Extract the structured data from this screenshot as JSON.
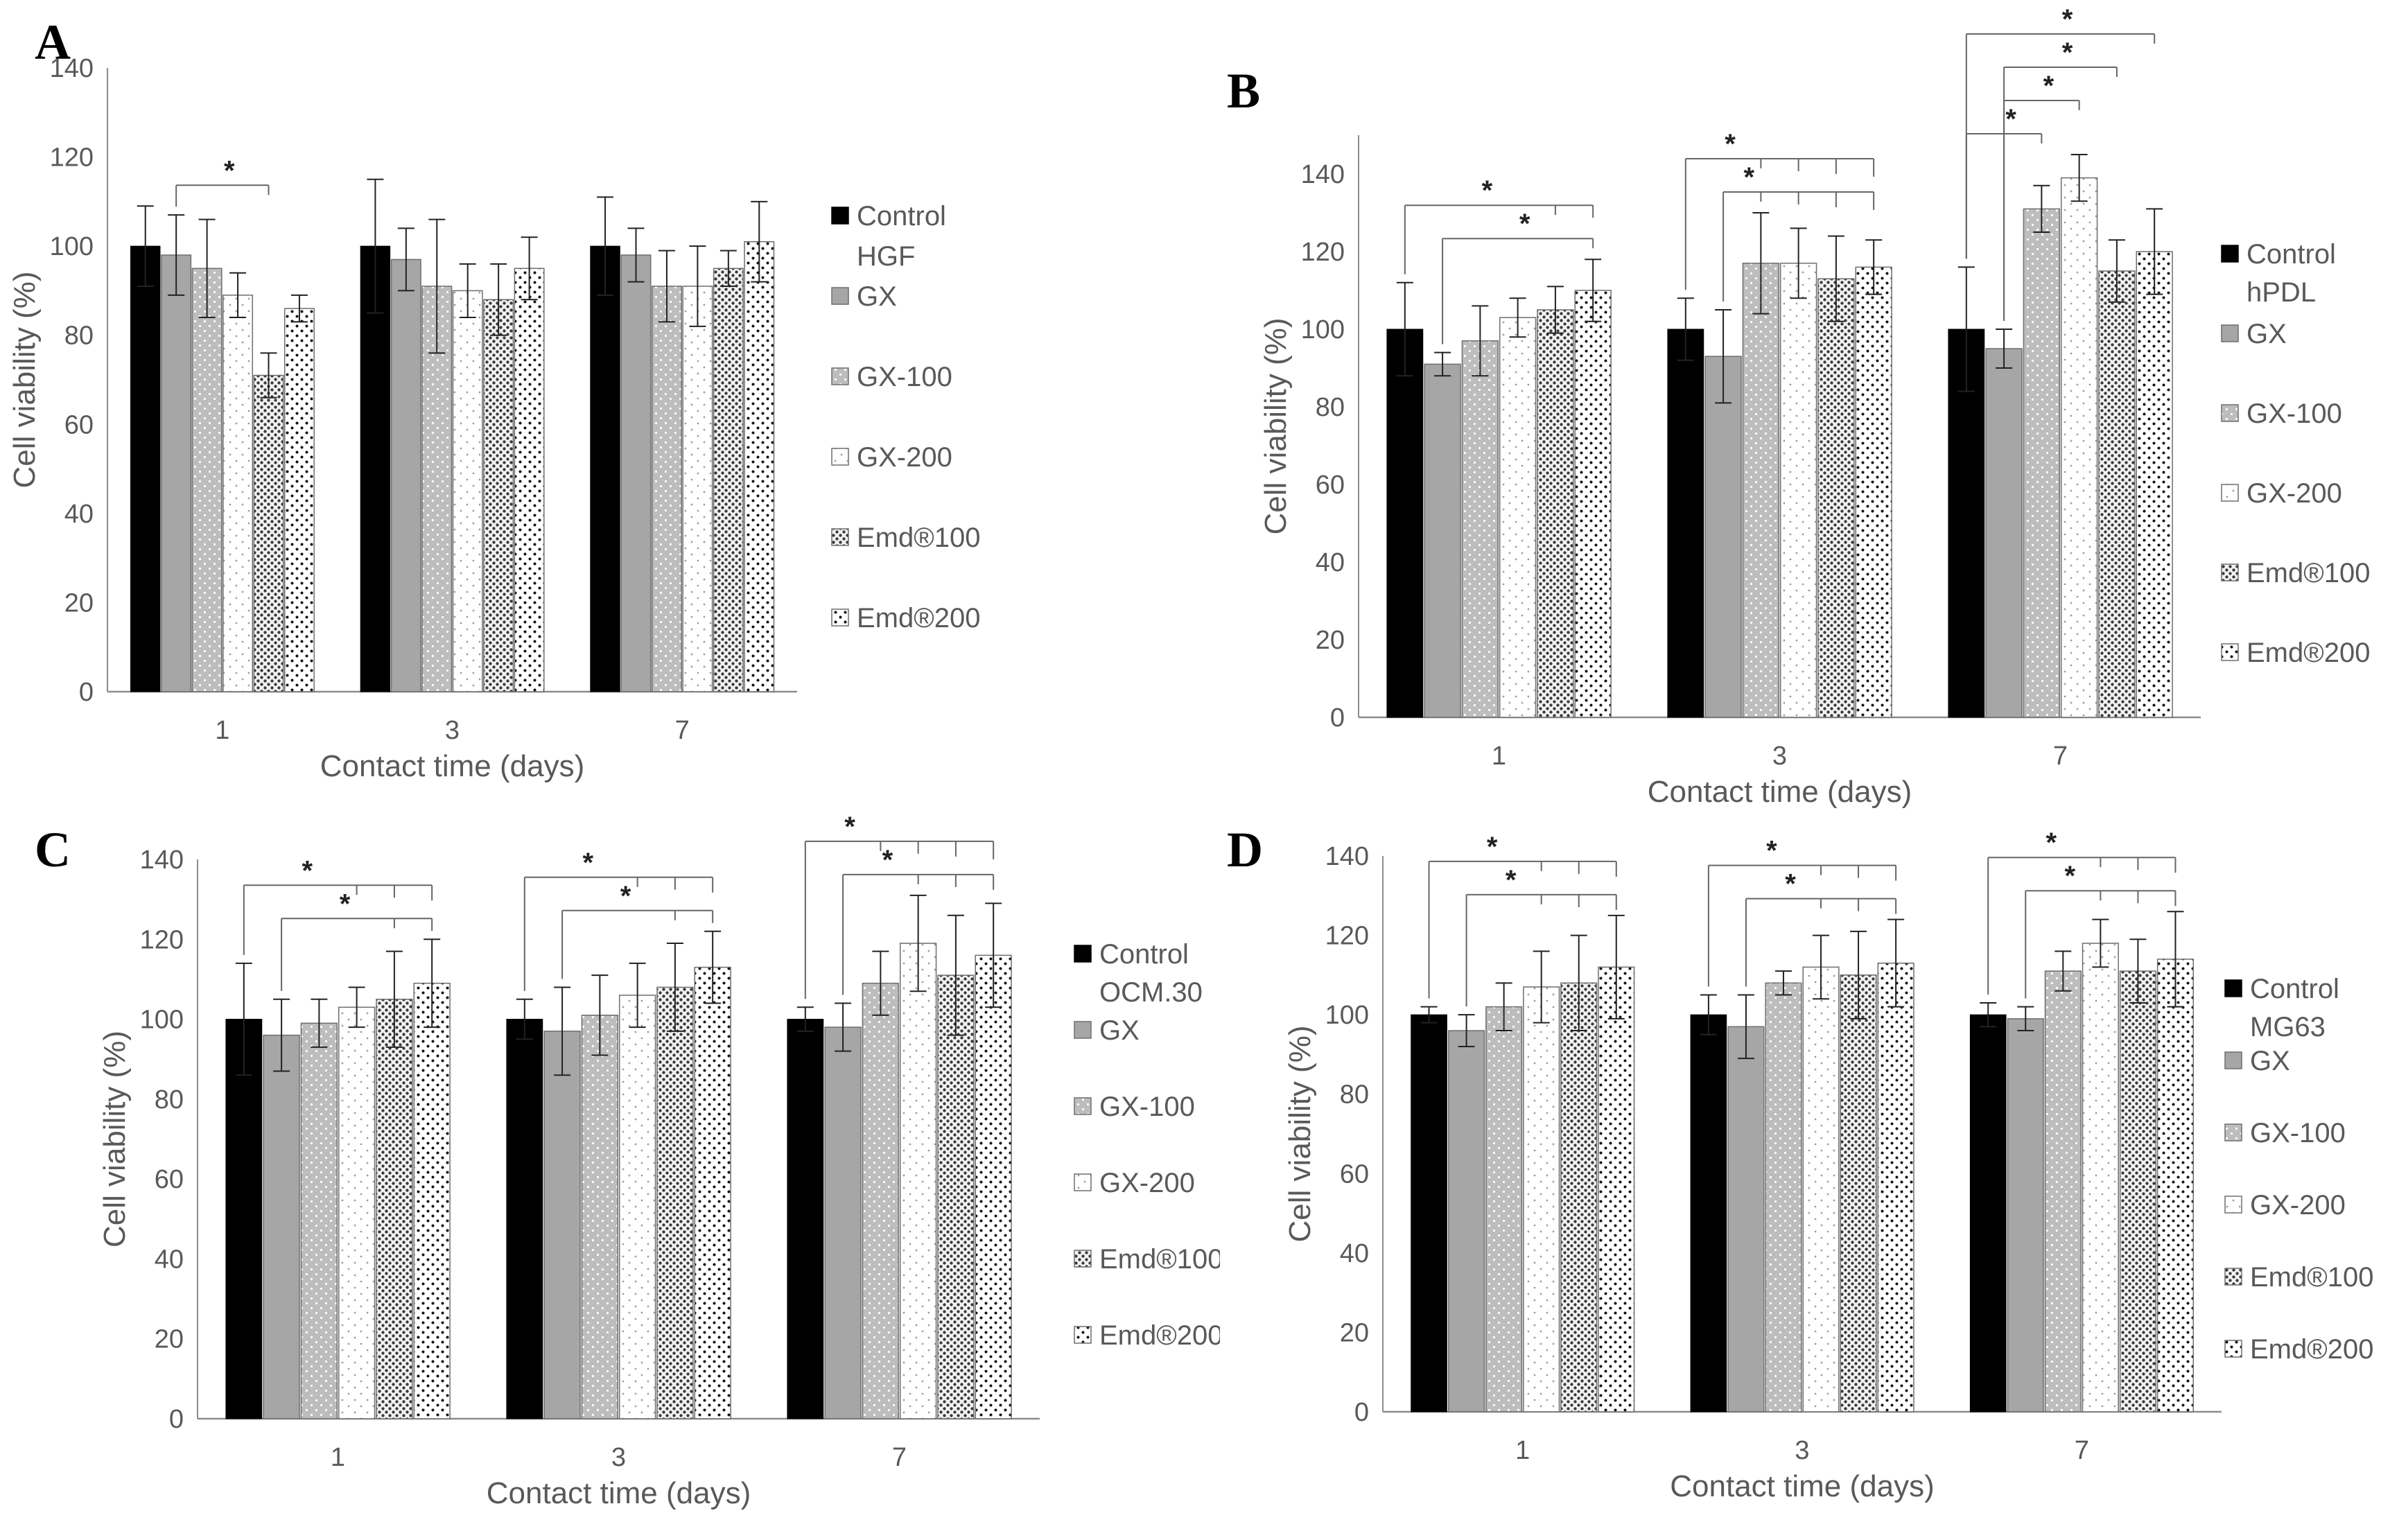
{
  "colors": {
    "control": "#000000",
    "gx": "#a6a6a6",
    "axis": "#8c8c8c",
    "text": "#595959"
  },
  "legend_labels": [
    "Control",
    "GX",
    "GX-100",
    "GX-200",
    "Emd®100",
    "Emd®200"
  ],
  "chart_data": [
    {
      "id": "A",
      "letter": "A",
      "type": "bar",
      "cell_line": "HGF",
      "title": "",
      "xlabel": "Contact time (days)",
      "ylabel": "Cell viability (%)",
      "ylim": [
        0,
        140
      ],
      "yticks": [
        "0",
        "20",
        "40",
        "60",
        "80",
        "100",
        "120",
        "140"
      ],
      "categories": [
        "1",
        "3",
        "7"
      ],
      "series": [
        {
          "name": "Control",
          "values": [
            100,
            100,
            100
          ],
          "errors": [
            9,
            15,
            11
          ]
        },
        {
          "name": "GX",
          "values": [
            98,
            97,
            98
          ],
          "errors": [
            9,
            7,
            6
          ]
        },
        {
          "name": "GX-100",
          "values": [
            95,
            91,
            91
          ],
          "errors": [
            11,
            15,
            8
          ]
        },
        {
          "name": "GX-200",
          "values": [
            89,
            90,
            91
          ],
          "errors": [
            5,
            6,
            9
          ]
        },
        {
          "name": "Emd®100",
          "values": [
            71,
            88,
            95
          ],
          "errors": [
            5,
            8,
            4
          ]
        },
        {
          "name": "Emd®200",
          "values": [
            86,
            95,
            101
          ],
          "errors": [
            3,
            7,
            9
          ]
        }
      ],
      "significance": [
        {
          "label": "*",
          "category": 0,
          "from_series": 1,
          "to_series": [
            4
          ],
          "level": 0
        }
      ]
    },
    {
      "id": "B",
      "letter": "B",
      "type": "bar",
      "cell_line": "hPDL",
      "title": "",
      "xlabel": "Contact time (days)",
      "ylabel": "Cell viability (%)",
      "ylim": [
        0,
        150
      ],
      "yticks": [
        "0",
        "20",
        "40",
        "60",
        "80",
        "100",
        "120",
        "140"
      ],
      "categories": [
        "1",
        "3",
        "7"
      ],
      "series": [
        {
          "name": "Control",
          "values": [
            100,
            100,
            100
          ],
          "errors": [
            12,
            8,
            16
          ]
        },
        {
          "name": "GX",
          "values": [
            91,
            93,
            95
          ],
          "errors": [
            3,
            12,
            5
          ]
        },
        {
          "name": "GX-100",
          "values": [
            97,
            117,
            131
          ],
          "errors": [
            9,
            13,
            6
          ]
        },
        {
          "name": "GX-200",
          "values": [
            103,
            117,
            139
          ],
          "errors": [
            5,
            9,
            6
          ]
        },
        {
          "name": "Emd®100",
          "values": [
            105,
            113,
            115
          ],
          "errors": [
            6,
            11,
            8
          ]
        },
        {
          "name": "Emd®200",
          "values": [
            110,
            116,
            120
          ],
          "errors": [
            8,
            7,
            11
          ]
        }
      ],
      "significance": [
        {
          "label": "*",
          "category": 0,
          "from_series": 0,
          "to_series": [
            4,
            5
          ],
          "level": 1
        },
        {
          "label": "*",
          "category": 0,
          "from_series": 1,
          "to_series": [
            5
          ],
          "level": 0
        },
        {
          "label": "*",
          "category": 1,
          "from_series": 0,
          "to_series": [
            2,
            3,
            4,
            5
          ],
          "level": 1
        },
        {
          "label": "*",
          "category": 1,
          "from_series": 1,
          "to_series": [
            2,
            3,
            4,
            5
          ],
          "level": 0
        },
        {
          "label": "*",
          "category": 2,
          "from_series": 0,
          "to_series": [
            5
          ],
          "level": 3
        },
        {
          "label": "*",
          "category": 2,
          "from_series": 1,
          "to_series": [
            4
          ],
          "level": 2
        },
        {
          "label": "*",
          "category": 2,
          "from_series": 1,
          "to_series": [
            3
          ],
          "level": 1
        },
        {
          "label": "*",
          "category": 2,
          "from_series": 0,
          "to_series": [
            2
          ],
          "level": 0
        }
      ]
    },
    {
      "id": "C",
      "letter": "C",
      "type": "bar",
      "cell_line": "OCM.30",
      "title": "",
      "xlabel": "Contact time (days)",
      "ylabel": "Cell viability (%)",
      "ylim": [
        0,
        140
      ],
      "yticks": [
        "0",
        "20",
        "40",
        "60",
        "80",
        "100",
        "120",
        "140"
      ],
      "categories": [
        "1",
        "3",
        "7"
      ],
      "series": [
        {
          "name": "Control",
          "values": [
            100,
            100,
            100
          ],
          "errors": [
            14,
            5,
            3
          ]
        },
        {
          "name": "GX",
          "values": [
            96,
            97,
            98
          ],
          "errors": [
            9,
            11,
            6
          ]
        },
        {
          "name": "GX-100",
          "values": [
            99,
            101,
            109
          ],
          "errors": [
            6,
            10,
            8
          ]
        },
        {
          "name": "GX-200",
          "values": [
            103,
            106,
            119
          ],
          "errors": [
            5,
            8,
            12
          ]
        },
        {
          "name": "Emd®100",
          "values": [
            105,
            108,
            111
          ],
          "errors": [
            12,
            11,
            15
          ]
        },
        {
          "name": "Emd®200",
          "values": [
            109,
            113,
            116
          ],
          "errors": [
            11,
            9,
            13
          ]
        }
      ],
      "significance": [
        {
          "label": "*",
          "category": 0,
          "from_series": 0,
          "to_series": [
            3,
            4,
            5
          ],
          "level": 1
        },
        {
          "label": "*",
          "category": 0,
          "from_series": 1,
          "to_series": [
            4,
            5
          ],
          "level": 0
        },
        {
          "label": "*",
          "category": 1,
          "from_series": 0,
          "to_series": [
            3,
            4,
            5
          ],
          "level": 1
        },
        {
          "label": "*",
          "category": 1,
          "from_series": 1,
          "to_series": [
            4,
            5
          ],
          "level": 0
        },
        {
          "label": "*",
          "category": 2,
          "from_series": 0,
          "to_series": [
            2,
            3,
            4,
            5
          ],
          "level": 1
        },
        {
          "label": "*",
          "category": 2,
          "from_series": 1,
          "to_series": [
            3,
            4,
            5
          ],
          "level": 0
        }
      ]
    },
    {
      "id": "D",
      "letter": "D",
      "type": "bar",
      "cell_line": "MG63",
      "title": "",
      "xlabel": "Contact time (days)",
      "ylabel": "Cell viability (%)",
      "ylim": [
        0,
        140
      ],
      "yticks": [
        "0",
        "20",
        "40",
        "60",
        "80",
        "100",
        "120",
        "140"
      ],
      "categories": [
        "1",
        "3",
        "7"
      ],
      "series": [
        {
          "name": "Control",
          "values": [
            100,
            100,
            100
          ],
          "errors": [
            2,
            5,
            3
          ]
        },
        {
          "name": "GX",
          "values": [
            96,
            97,
            99
          ],
          "errors": [
            4,
            8,
            3
          ]
        },
        {
          "name": "GX-100",
          "values": [
            102,
            108,
            111
          ],
          "errors": [
            6,
            3,
            5
          ]
        },
        {
          "name": "GX-200",
          "values": [
            107,
            112,
            118
          ],
          "errors": [
            9,
            8,
            6
          ]
        },
        {
          "name": "Emd®100",
          "values": [
            108,
            110,
            111
          ],
          "errors": [
            12,
            11,
            8
          ]
        },
        {
          "name": "Emd®200",
          "values": [
            112,
            113,
            114
          ],
          "errors": [
            13,
            11,
            12
          ]
        }
      ],
      "significance": [
        {
          "label": "*",
          "category": 0,
          "from_series": 0,
          "to_series": [
            3,
            4,
            5
          ],
          "level": 1
        },
        {
          "label": "*",
          "category": 0,
          "from_series": 1,
          "to_series": [
            3,
            4,
            5
          ],
          "level": 0
        },
        {
          "label": "*",
          "category": 1,
          "from_series": 0,
          "to_series": [
            3,
            4,
            5
          ],
          "level": 1
        },
        {
          "label": "*",
          "category": 1,
          "from_series": 1,
          "to_series": [
            3,
            4,
            5
          ],
          "level": 0
        },
        {
          "label": "*",
          "category": 2,
          "from_series": 0,
          "to_series": [
            3,
            4,
            5
          ],
          "level": 1
        },
        {
          "label": "*",
          "category": 2,
          "from_series": 1,
          "to_series": [
            3,
            4,
            5
          ],
          "level": 0
        }
      ]
    }
  ]
}
